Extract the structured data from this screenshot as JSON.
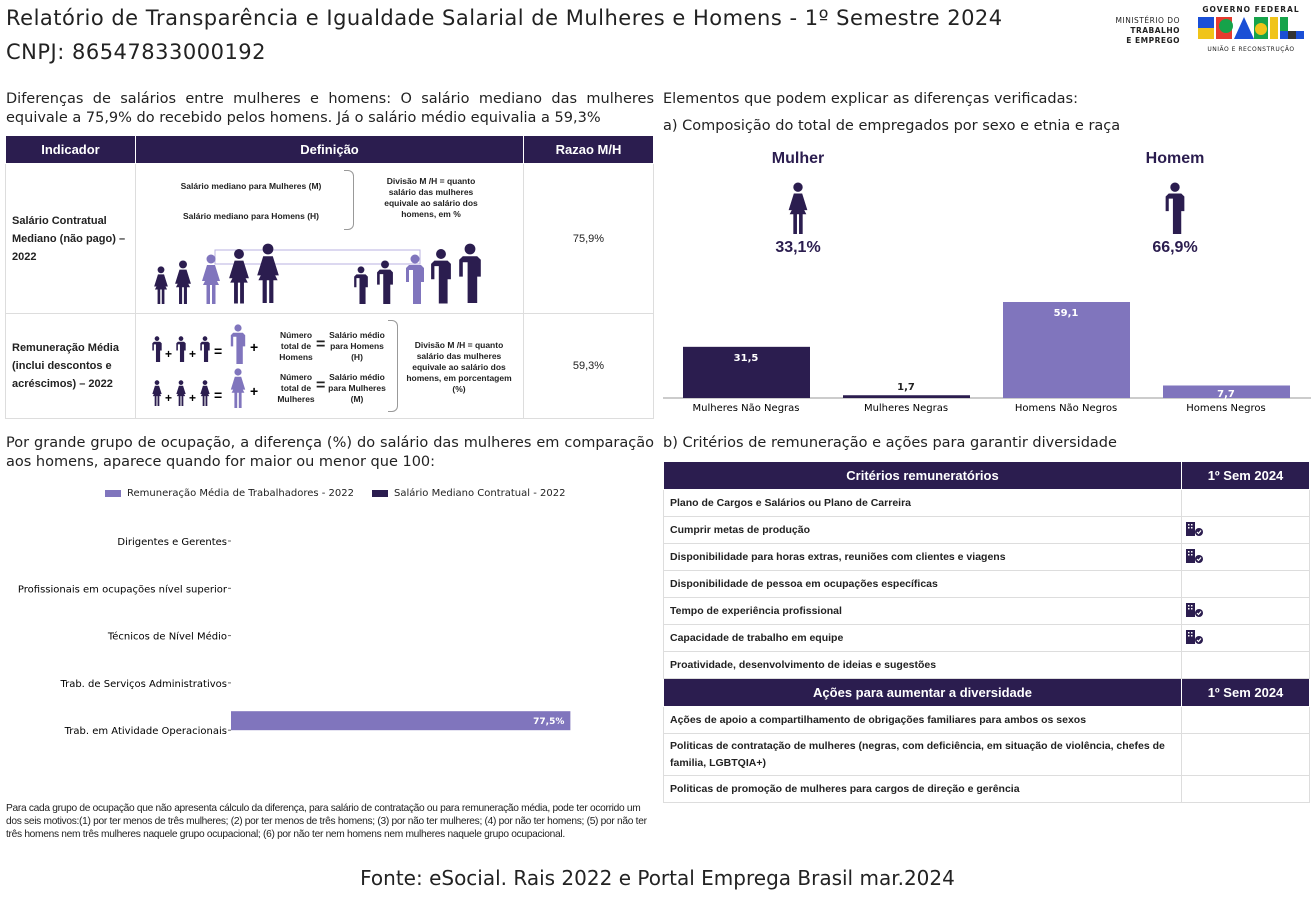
{
  "header": {
    "title": "Relatório de Transparência e Igualdade Salarial de Mulheres e Homens - 1º Semestre 2024",
    "cnpj": "CNPJ: 86547833000192",
    "logo_ministry": [
      "MINISTÉRIO DO",
      "TRABALHO",
      "E EMPREGO"
    ],
    "logo_gov_top": "GOVERNO FEDERAL",
    "logo_gov_word": "BRASIL",
    "logo_gov_bottom": "UNIÃO E RECONSTRUÇÃO"
  },
  "left": {
    "intro": "Diferenças de salários entre mulheres e homens: O salário mediano das mulheres equivale a 75,9% do recebido pelos homens. Já o salário médio equivalia a 59,3%",
    "table": {
      "headers": [
        "Indicador",
        "Definição",
        "Razao M/H"
      ],
      "rows": [
        {
          "indicator": "Salário Contratual Mediano (não pago) – 2022",
          "def_m": "Salário mediano para Mulheres (M)",
          "def_h": "Salário mediano para Homens (H)",
          "def_div": "Divisão M /H = quanto salário das mulheres equivale ao salário dos homens, em %",
          "ratio": "75,9%"
        },
        {
          "indicator": "Remuneração Média (inclui descontos e acréscimos) – 2022",
          "num_h": "Número total de Homens",
          "sal_h": "Salário médio para Homens (H)",
          "num_m": "Número total de Mulheres",
          "sal_m": "Salário médio para Mulheres (M)",
          "def_div": "Divisão M /H = quanto salário das mulheres equivale ao salário dos homens, em porcentagem (%)",
          "ratio": "59,3%"
        }
      ]
    },
    "occupation_intro": "Por grande grupo de ocupação, a diferença (%) do salário das mulheres em comparação aos homens, aparece quando for maior ou menor que 100:",
    "note": "Para cada grupo de ocupação que não apresenta cálculo da diferença, para salário de contratação ou para remuneração média, pode ter ocorrido um dos seis motivos:(1) por ter menos de três mulheres; (2) por ter menos de três homens; (3) por não ter mulheres; (4) por não ter homens; (5) por não ter três homens nem três mulheres naquele grupo ocupacional; (6) por não ter nem homens nem mulheres naquele grupo ocupacional."
  },
  "right": {
    "intro": "Elementos que podem explicar as diferenças verificadas:",
    "section_a": "a) Composição do total de empregados por sexo e etnia e raça",
    "mulher_label": "Mulher",
    "mulher_pct": "33,1%",
    "homem_label": "Homem",
    "homem_pct": "66,9%",
    "section_b": "b) Critérios de remuneração e ações para garantir diversidade",
    "criteria_header": [
      "Critérios remuneratórios",
      "1º Sem 2024"
    ],
    "criteria": [
      {
        "label": "Plano de Cargos e Salários ou Plano de Carreira",
        "checked": false
      },
      {
        "label": "Cumprir metas de produção",
        "checked": true
      },
      {
        "label": "Disponibilidade para horas extras, reuniões com clientes e viagens",
        "checked": true
      },
      {
        "label": "Disponibilidade de pessoa em ocupações específicas",
        "checked": false
      },
      {
        "label": "Tempo de experiência profissional",
        "checked": true
      },
      {
        "label": "Capacidade de trabalho em equipe",
        "checked": true
      },
      {
        "label": "Proatividade, desenvolvimento de ideias e sugestões",
        "checked": false
      }
    ],
    "actions_header": [
      "Ações para aumentar a diversidade",
      "1º Sem 2024"
    ],
    "actions": [
      {
        "label": "Ações de apoio a compartilhamento de obrigações familiares para ambos os sexos"
      },
      {
        "label": "Politicas de contratação de mulheres (negras, com deficiência, em situação de violência, chefes de familia, LGBTQIA+)"
      },
      {
        "label": "Politicas de promoção de mulheres para cargos de direção e gerência"
      }
    ]
  },
  "footer": "Fonte: eSocial. Rais 2022 e Portal Emprega Brasil mar.2024",
  "colors": {
    "dark": "#2b1d4f",
    "light": "#8075bd"
  },
  "chart_data": [
    {
      "type": "bar",
      "orientation": "vertical",
      "title": "Composição do total de empregados por sexo e etnia e raça",
      "categories": [
        "Mulheres Não Negras",
        "Mulheres Negras",
        "Homens Não Negros",
        "Homens Negros"
      ],
      "values": [
        31.5,
        1.7,
        59.1,
        7.7
      ],
      "labels": [
        "31,5",
        "1,7",
        "59,1",
        "7,7"
      ],
      "ylim": [
        0,
        65
      ]
    },
    {
      "type": "bar",
      "orientation": "horizontal",
      "legend": "top",
      "series": [
        {
          "name": "Remuneração Média de Trabalhadores - 2022",
          "values": [
            null,
            null,
            null,
            null,
            77.5
          ],
          "labels": [
            "",
            "",
            "",
            "",
            "77,5%"
          ]
        },
        {
          "name": "Salário Mediano Contratual - 2022",
          "values": [
            null,
            null,
            null,
            null,
            null
          ]
        }
      ],
      "categories": [
        "Dirigentes e Gerentes",
        "Profissionais em ocupações nível superior",
        "Técnicos de Nível Médio",
        "Trab. de Serviços Administrativos",
        "Trab. em Atividade Operacionais"
      ],
      "xlim": [
        0,
        95
      ]
    }
  ]
}
